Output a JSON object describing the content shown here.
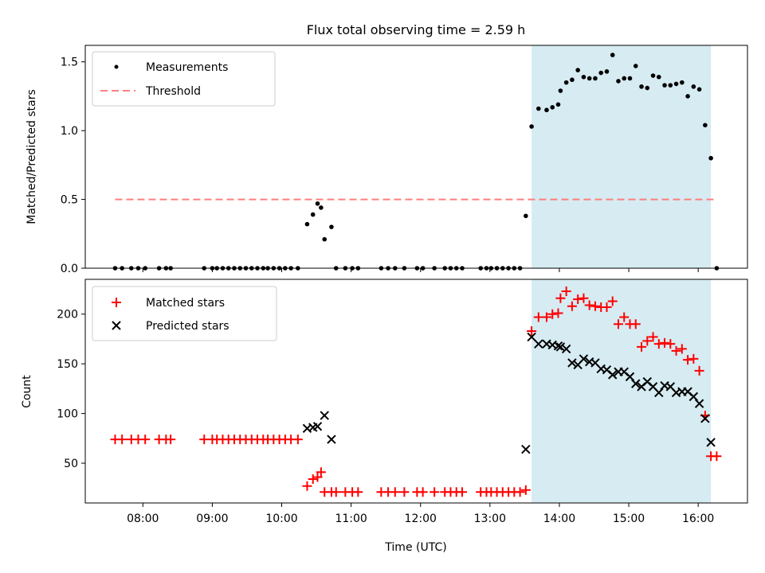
{
  "title": "Flux total observing time = 2.59 h",
  "xlabel": "Time (UTC)",
  "x_ticks": [
    "08:00",
    "09:00",
    "10:00",
    "11:00",
    "12:00",
    "13:00",
    "14:00",
    "15:00",
    "16:00"
  ],
  "chart_data": [
    {
      "type": "scatter",
      "ylabel": "Matched/Predicted stars",
      "ylim": [
        0,
        1.62
      ],
      "yticks": [
        0.0,
        0.5,
        1.0,
        1.5
      ],
      "legend_position": "upper-left",
      "shaded_region": {
        "x": [
          "13:36",
          "16:11"
        ],
        "color": "#add8e6"
      },
      "series": [
        {
          "name": "Measurements",
          "marker": "dot",
          "color": "#000000",
          "points": [
            [
              "07:36",
              0
            ],
            [
              "07:42",
              0
            ],
            [
              "07:50",
              0
            ],
            [
              "07:56",
              0
            ],
            [
              "08:02",
              0
            ],
            [
              "08:14",
              0
            ],
            [
              "08:20",
              0
            ],
            [
              "08:24",
              0
            ],
            [
              "08:53",
              0
            ],
            [
              "09:00",
              0
            ],
            [
              "09:04",
              0
            ],
            [
              "09:09",
              0
            ],
            [
              "09:14",
              0
            ],
            [
              "09:19",
              0
            ],
            [
              "09:24",
              0
            ],
            [
              "09:29",
              0
            ],
            [
              "09:34",
              0
            ],
            [
              "09:39",
              0
            ],
            [
              "09:44",
              0
            ],
            [
              "09:48",
              0
            ],
            [
              "09:53",
              0
            ],
            [
              "09:58",
              0
            ],
            [
              "10:03",
              0
            ],
            [
              "10:08",
              0
            ],
            [
              "10:14",
              0
            ],
            [
              "10:22",
              0.32
            ],
            [
              "10:27",
              0.39
            ],
            [
              "10:31",
              0.47
            ],
            [
              "10:34",
              0.44
            ],
            [
              "10:37",
              0.21
            ],
            [
              "10:43",
              0.3
            ],
            [
              "10:47",
              0
            ],
            [
              "10:55",
              0
            ],
            [
              "11:01",
              0
            ],
            [
              "11:06",
              0
            ],
            [
              "11:26",
              0
            ],
            [
              "11:32",
              0
            ],
            [
              "11:38",
              0
            ],
            [
              "11:46",
              0
            ],
            [
              "11:57",
              0
            ],
            [
              "12:02",
              0
            ],
            [
              "12:12",
              0
            ],
            [
              "12:21",
              0
            ],
            [
              "12:26",
              0
            ],
            [
              "12:31",
              0
            ],
            [
              "12:36",
              0
            ],
            [
              "12:52",
              0
            ],
            [
              "12:57",
              0
            ],
            [
              "13:01",
              0
            ],
            [
              "13:06",
              0
            ],
            [
              "13:11",
              0
            ],
            [
              "13:16",
              0
            ],
            [
              "13:21",
              0
            ],
            [
              "13:26",
              0
            ],
            [
              "13:31",
              0.38
            ],
            [
              "13:36",
              1.03
            ],
            [
              "13:42",
              1.16
            ],
            [
              "13:49",
              1.15
            ],
            [
              "13:54",
              1.17
            ],
            [
              "13:59",
              1.19
            ],
            [
              "14:01",
              1.29
            ],
            [
              "14:06",
              1.35
            ],
            [
              "14:11",
              1.37
            ],
            [
              "14:16",
              1.44
            ],
            [
              "14:21",
              1.39
            ],
            [
              "14:26",
              1.38
            ],
            [
              "14:31",
              1.38
            ],
            [
              "14:36",
              1.42
            ],
            [
              "14:41",
              1.43
            ],
            [
              "14:46",
              1.55
            ],
            [
              "14:51",
              1.36
            ],
            [
              "14:56",
              1.38
            ],
            [
              "15:01",
              1.38
            ],
            [
              "15:06",
              1.47
            ],
            [
              "15:11",
              1.32
            ],
            [
              "15:16",
              1.31
            ],
            [
              "15:21",
              1.4
            ],
            [
              "15:26",
              1.39
            ],
            [
              "15:31",
              1.33
            ],
            [
              "15:36",
              1.33
            ],
            [
              "15:41",
              1.34
            ],
            [
              "15:46",
              1.35
            ],
            [
              "15:51",
              1.25
            ],
            [
              "15:56",
              1.32
            ],
            [
              "16:01",
              1.3
            ],
            [
              "16:06",
              1.04
            ],
            [
              "16:11",
              0.8
            ],
            [
              "16:16",
              0
            ]
          ]
        },
        {
          "name": "Threshold",
          "marker": "dashed-line",
          "color": "#ff7f7f",
          "points": [
            [
              "07:36",
              0.5
            ],
            [
              "16:16",
              0.5
            ]
          ]
        }
      ]
    },
    {
      "type": "scatter",
      "ylabel": "Count",
      "ylim": [
        10,
        235
      ],
      "yticks": [
        50,
        100,
        150,
        200
      ],
      "legend_position": "upper-left",
      "shaded_region": {
        "x": [
          "13:36",
          "16:11"
        ],
        "color": "#add8e6"
      },
      "series": [
        {
          "name": "Matched stars",
          "marker": "plus",
          "color": "#ff0000",
          "points": [
            [
              "07:36",
              74
            ],
            [
              "07:42",
              74
            ],
            [
              "07:50",
              74
            ],
            [
              "07:56",
              74
            ],
            [
              "08:02",
              74
            ],
            [
              "08:14",
              74
            ],
            [
              "08:20",
              74
            ],
            [
              "08:24",
              74
            ],
            [
              "08:53",
              74
            ],
            [
              "09:00",
              74
            ],
            [
              "09:04",
              74
            ],
            [
              "09:09",
              74
            ],
            [
              "09:14",
              74
            ],
            [
              "09:19",
              74
            ],
            [
              "09:24",
              74
            ],
            [
              "09:29",
              74
            ],
            [
              "09:34",
              74
            ],
            [
              "09:39",
              74
            ],
            [
              "09:44",
              74
            ],
            [
              "09:48",
              74
            ],
            [
              "09:53",
              74
            ],
            [
              "09:58",
              74
            ],
            [
              "10:03",
              74
            ],
            [
              "10:08",
              74
            ],
            [
              "10:14",
              74
            ],
            [
              "10:22",
              27
            ],
            [
              "10:27",
              34
            ],
            [
              "10:31",
              36
            ],
            [
              "10:34",
              41
            ],
            [
              "10:37",
              21
            ],
            [
              "10:43",
              21
            ],
            [
              "10:47",
              21
            ],
            [
              "10:55",
              21
            ],
            [
              "11:01",
              21
            ],
            [
              "11:06",
              21
            ],
            [
              "11:26",
              21
            ],
            [
              "11:32",
              21
            ],
            [
              "11:38",
              21
            ],
            [
              "11:46",
              21
            ],
            [
              "11:57",
              21
            ],
            [
              "12:02",
              21
            ],
            [
              "12:12",
              21
            ],
            [
              "12:21",
              21
            ],
            [
              "12:26",
              21
            ],
            [
              "12:31",
              21
            ],
            [
              "12:36",
              21
            ],
            [
              "12:52",
              21
            ],
            [
              "12:57",
              21
            ],
            [
              "13:01",
              21
            ],
            [
              "13:06",
              21
            ],
            [
              "13:11",
              21
            ],
            [
              "13:16",
              21
            ],
            [
              "13:21",
              21
            ],
            [
              "13:26",
              21
            ],
            [
              "13:31",
              23
            ],
            [
              "13:36",
              183
            ],
            [
              "13:42",
              197
            ],
            [
              "13:49",
              197
            ],
            [
              "13:54",
              200
            ],
            [
              "13:59",
              201
            ],
            [
              "14:01",
              216
            ],
            [
              "14:06",
              223
            ],
            [
              "14:11",
              208
            ],
            [
              "14:16",
              215
            ],
            [
              "14:21",
              216
            ],
            [
              "14:26",
              209
            ],
            [
              "14:31",
              208
            ],
            [
              "14:36",
              207
            ],
            [
              "14:41",
              207
            ],
            [
              "14:46",
              213
            ],
            [
              "14:51",
              190
            ],
            [
              "14:56",
              197
            ],
            [
              "15:01",
              190
            ],
            [
              "15:06",
              190
            ],
            [
              "15:11",
              167
            ],
            [
              "15:16",
              173
            ],
            [
              "15:21",
              177
            ],
            [
              "15:26",
              170
            ],
            [
              "15:31",
              171
            ],
            [
              "15:36",
              170
            ],
            [
              "15:41",
              163
            ],
            [
              "15:46",
              165
            ],
            [
              "15:51",
              154
            ],
            [
              "15:56",
              155
            ],
            [
              "16:01",
              143
            ],
            [
              "16:06",
              98
            ],
            [
              "16:11",
              57
            ],
            [
              "16:16",
              57
            ]
          ]
        },
        {
          "name": "Predicted stars",
          "marker": "x",
          "color": "#000000",
          "points": [
            [
              "10:22",
              85
            ],
            [
              "10:27",
              86
            ],
            [
              "10:31",
              87
            ],
            [
              "10:37",
              98
            ],
            [
              "10:43",
              74
            ],
            [
              "13:31",
              64
            ],
            [
              "13:36",
              177
            ],
            [
              "13:42",
              170
            ],
            [
              "13:49",
              170
            ],
            [
              "13:54",
              169
            ],
            [
              "13:59",
              168
            ],
            [
              "14:01",
              167
            ],
            [
              "14:06",
              165
            ],
            [
              "14:11",
              151
            ],
            [
              "14:16",
              149
            ],
            [
              "14:21",
              155
            ],
            [
              "14:26",
              152
            ],
            [
              "14:31",
              151
            ],
            [
              "14:36",
              145
            ],
            [
              "14:41",
              144
            ],
            [
              "14:46",
              139
            ],
            [
              "14:51",
              142
            ],
            [
              "14:56",
              142
            ],
            [
              "15:01",
              137
            ],
            [
              "15:06",
              130
            ],
            [
              "15:11",
              127
            ],
            [
              "15:16",
              132
            ],
            [
              "15:21",
              127
            ],
            [
              "15:26",
              121
            ],
            [
              "15:31",
              128
            ],
            [
              "15:36",
              127
            ],
            [
              "15:41",
              121
            ],
            [
              "15:46",
              122
            ],
            [
              "15:51",
              122
            ],
            [
              "15:56",
              117
            ],
            [
              "16:01",
              110
            ],
            [
              "16:06",
              95
            ],
            [
              "16:11",
              71
            ]
          ]
        }
      ]
    }
  ]
}
